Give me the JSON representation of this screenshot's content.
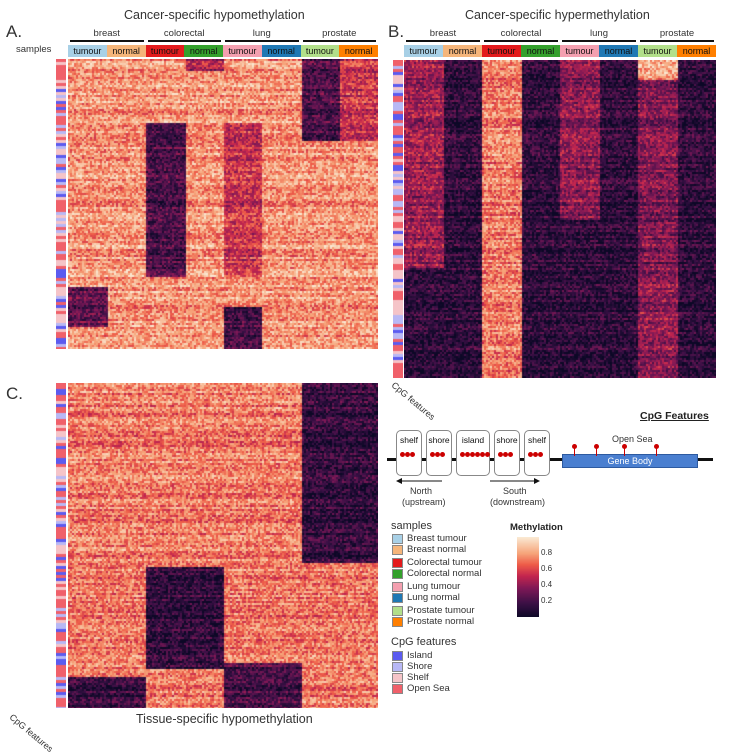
{
  "panels": {
    "a": {
      "letter": "A.",
      "title": "Cancer-specific hypomethylation"
    },
    "b": {
      "letter": "B.",
      "title": "Cancer-specific hypermethylation"
    },
    "c": {
      "letter": "C.",
      "title": "Tissue-specific hypomethylation"
    }
  },
  "samples_label": "samples",
  "cpg_features_rotated": "CpG features",
  "tissues": [
    "breast",
    "colorectal",
    "lung",
    "prostate"
  ],
  "sample_segments": [
    {
      "label": "tumour",
      "color": "#a8d0e6"
    },
    {
      "label": "normal",
      "color": "#f5b57a"
    },
    {
      "label": "tumour",
      "color": "#e31a1c"
    },
    {
      "label": "normal",
      "color": "#33a02c"
    },
    {
      "label": "tumour",
      "color": "#f4a0b0"
    },
    {
      "label": "normal",
      "color": "#1f78b4"
    },
    {
      "label": "tumour",
      "color": "#b2df8a"
    },
    {
      "label": "normal",
      "color": "#ff7f00"
    }
  ],
  "cpg_diagram": {
    "title": "CpG Features",
    "boxes": [
      "shelf",
      "shore",
      "island",
      "shore",
      "shelf"
    ],
    "north": "North",
    "north_sub": "(upstream)",
    "south": "South",
    "south_sub": "(downstream)",
    "open_sea": "Open Sea",
    "gene_body": "Gene Body"
  },
  "legend": {
    "samples_title": "samples",
    "samples": [
      {
        "label": "Breast tumour",
        "color": "#a8d0e6"
      },
      {
        "label": "Breast normal",
        "color": "#f5b57a"
      },
      {
        "label": "Colorectal tumour",
        "color": "#e31a1c"
      },
      {
        "label": "Colorectal normal",
        "color": "#33a02c"
      },
      {
        "label": "Lung tumour",
        "color": "#f4a0b0"
      },
      {
        "label": "Lung normal",
        "color": "#1f78b4"
      },
      {
        "label": "Prostate tumour",
        "color": "#b2df8a"
      },
      {
        "label": "Prostate normal",
        "color": "#ff7f00"
      }
    ],
    "cpg_title": "CpG features",
    "cpg": [
      {
        "label": "Island",
        "color": "#5b5bf0"
      },
      {
        "label": "Shore",
        "color": "#b8b8f5"
      },
      {
        "label": "Shelf",
        "color": "#f5c4c8"
      },
      {
        "label": "Open Sea",
        "color": "#f0606a"
      }
    ],
    "methylation_title": "Methylation",
    "methylation_ticks": [
      "0.8",
      "0.6",
      "0.4",
      "0.2"
    ]
  }
}
